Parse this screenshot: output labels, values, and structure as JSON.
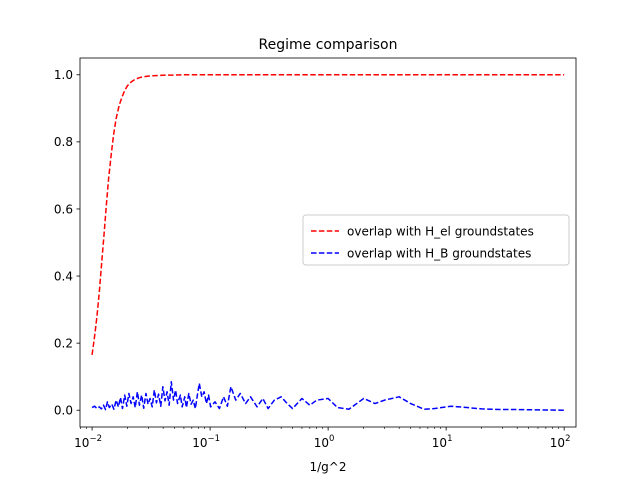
{
  "chart_data": {
    "type": "line",
    "title": "Regime comparison",
    "xlabel": "1/g^2",
    "ylabel": "",
    "xscale": "log",
    "xlim": [
      0.0079,
      126
    ],
    "ylim": [
      -0.05,
      1.05
    ],
    "xticks": [
      0.01,
      0.1,
      1,
      10,
      100
    ],
    "xtick_labels": [
      {
        "base": "10",
        "exp": "−2"
      },
      {
        "base": "10",
        "exp": "−1"
      },
      {
        "base": "10",
        "exp": "0"
      },
      {
        "base": "10",
        "exp": "1"
      },
      {
        "base": "10",
        "exp": "2"
      }
    ],
    "yticks": [
      0.0,
      0.2,
      0.4,
      0.6,
      0.8,
      1.0
    ],
    "ytick_labels": [
      "0.0",
      "0.2",
      "0.4",
      "0.6",
      "0.8",
      "1.0"
    ],
    "grid": false,
    "legend_position": "center-right",
    "series": [
      {
        "name": "overlap with H_el groundstates",
        "color": "#ff0000",
        "linestyle": "dashed",
        "x": [
          0.01,
          0.0105,
          0.011,
          0.0115,
          0.012,
          0.0126,
          0.0132,
          0.0138,
          0.0145,
          0.0152,
          0.016,
          0.017,
          0.018,
          0.019,
          0.02,
          0.0215,
          0.023,
          0.025,
          0.027,
          0.03,
          0.033,
          0.037,
          0.042,
          0.05,
          0.06,
          0.08,
          0.1,
          0.2,
          0.5,
          1,
          10,
          100
        ],
        "y": [
          0.165,
          0.22,
          0.28,
          0.35,
          0.43,
          0.52,
          0.61,
          0.69,
          0.76,
          0.82,
          0.87,
          0.91,
          0.935,
          0.955,
          0.968,
          0.979,
          0.986,
          0.991,
          0.994,
          0.996,
          0.997,
          0.998,
          0.999,
          0.999,
          1.0,
          1.0,
          1.0,
          1.0,
          1.0,
          1.0,
          1.0,
          1.0
        ]
      },
      {
        "name": "overlap with H_B groundstates",
        "color": "#0000ff",
        "linestyle": "dashed",
        "x": [
          0.01,
          0.0105,
          0.011,
          0.0115,
          0.012,
          0.0125,
          0.013,
          0.0135,
          0.014,
          0.0147,
          0.0153,
          0.016,
          0.0167,
          0.0174,
          0.0181,
          0.0189,
          0.0197,
          0.0205,
          0.0214,
          0.0223,
          0.0232,
          0.0242,
          0.0252,
          0.0263,
          0.0274,
          0.0286,
          0.0298,
          0.031,
          0.0323,
          0.0337,
          0.0351,
          0.0366,
          0.0382,
          0.0398,
          0.0415,
          0.0432,
          0.045,
          0.0469,
          0.049,
          0.051,
          0.053,
          0.056,
          0.058,
          0.061,
          0.063,
          0.066,
          0.069,
          0.072,
          0.075,
          0.078,
          0.081,
          0.085,
          0.089,
          0.093,
          0.097,
          0.101,
          0.11,
          0.12,
          0.13,
          0.14,
          0.15,
          0.165,
          0.18,
          0.2,
          0.22,
          0.25,
          0.28,
          0.31,
          0.35,
          0.4,
          0.45,
          0.5,
          0.6,
          0.7,
          0.8,
          1.0,
          1.2,
          1.5,
          2.0,
          2.5,
          3.0,
          4.0,
          5.0,
          6.5,
          8.0,
          11,
          15,
          20,
          30,
          40,
          60,
          100
        ],
        "y": [
          0.008,
          0.012,
          0.005,
          0.01,
          0.004,
          0.015,
          0.002,
          0.025,
          0.008,
          0.018,
          0.003,
          0.03,
          0.01,
          0.038,
          0.005,
          0.045,
          0.012,
          0.05,
          0.02,
          0.04,
          0.008,
          0.055,
          0.015,
          0.045,
          0.006,
          0.05,
          0.018,
          0.035,
          0.01,
          0.06,
          0.022,
          0.048,
          0.012,
          0.07,
          0.028,
          0.055,
          0.015,
          0.085,
          0.03,
          0.06,
          0.02,
          0.045,
          0.01,
          0.04,
          0.008,
          0.05,
          0.018,
          0.03,
          0.005,
          0.045,
          0.08,
          0.04,
          0.055,
          0.02,
          0.045,
          0.01,
          0.025,
          0.005,
          0.04,
          0.012,
          0.07,
          0.03,
          0.05,
          0.02,
          0.04,
          0.01,
          0.035,
          0.005,
          0.03,
          0.04,
          0.02,
          0.005,
          0.035,
          0.015,
          0.03,
          0.035,
          0.008,
          0.003,
          0.035,
          0.02,
          0.03,
          0.04,
          0.02,
          0.003,
          0.005,
          0.012,
          0.008,
          0.004,
          0.002,
          0.002,
          0.001,
          0.0
        ]
      }
    ]
  }
}
